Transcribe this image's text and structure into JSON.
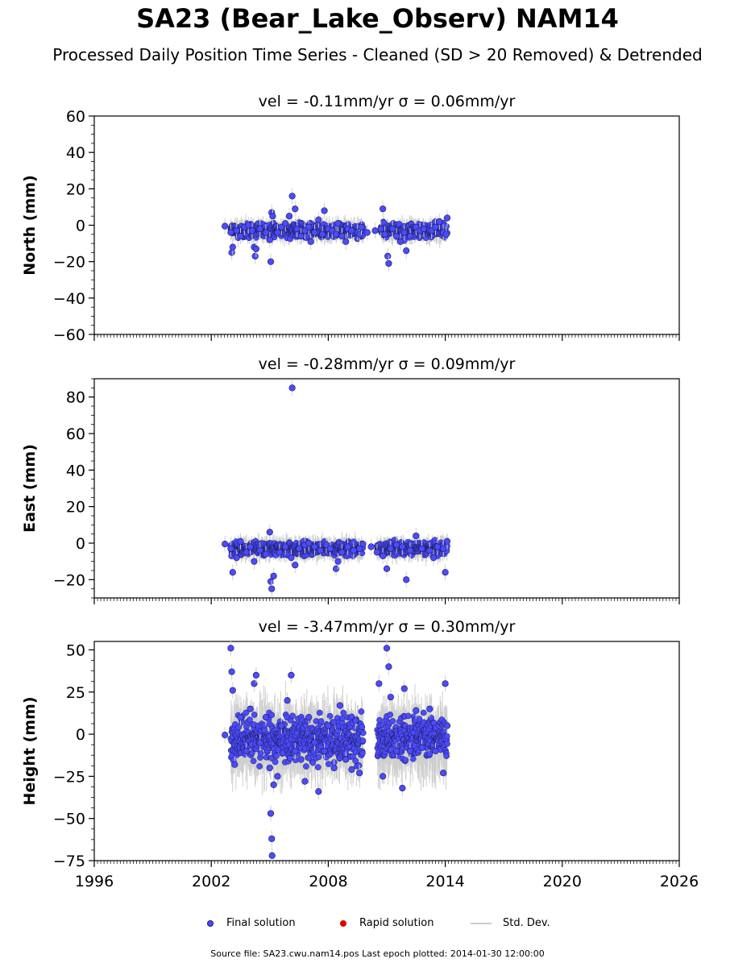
{
  "figure": {
    "title": "SA23 (Bear_Lake_Observ) NAM14",
    "subtitle": "Processed Daily Position Time Series - Cleaned (SD > 20 Removed) & Detrended",
    "footer": "Source file: SA23.cwu.nam14.pos  Last epoch plotted: 2014-01-30 12:00:00"
  },
  "legend": [
    {
      "label": "Final solution",
      "marker": "dot",
      "color": "#4b4bff"
    },
    {
      "label": "Rapid solution",
      "marker": "dot",
      "color": "#e00000"
    },
    {
      "label": "Std. Dev.",
      "marker": "line",
      "color": "#cccccc"
    }
  ],
  "chart_data": [
    {
      "type": "scatter",
      "component": "North",
      "title": "vel = -0.11mm/yr   σ = 0.06mm/yr",
      "xlabel": "",
      "ylabel": "North (mm)",
      "xlim": [
        1996,
        2026
      ],
      "ylim": [
        -60,
        60
      ],
      "xticks": [
        1996,
        2002,
        2008,
        2014,
        2020,
        2026
      ],
      "yticks": [
        60,
        40,
        20,
        0,
        -20,
        -40,
        -60
      ],
      "ytick_labels": [
        "60",
        "40",
        "20",
        "0",
        "−20",
        "−40",
        "−60"
      ],
      "show_xtick_labels": false,
      "series": [
        {
          "name": "Final solution",
          "color": "#4b4bff",
          "points": [
            [
              2002.7,
              -0.5
            ],
            [
              2003.0,
              -4
            ],
            [
              2003.05,
              -15
            ],
            [
              2003.1,
              -12
            ],
            [
              2003.3,
              -3
            ],
            [
              2003.5,
              -6
            ],
            [
              2003.7,
              -1
            ],
            [
              2003.9,
              0
            ],
            [
              2004.1,
              -3
            ],
            [
              2004.2,
              -12
            ],
            [
              2004.25,
              -17
            ],
            [
              2004.3,
              -13
            ],
            [
              2004.5,
              -2
            ],
            [
              2004.8,
              -4
            ],
            [
              2005.0,
              -8
            ],
            [
              2005.05,
              -20
            ],
            [
              2005.1,
              7
            ],
            [
              2005.15,
              5
            ],
            [
              2005.4,
              -4
            ],
            [
              2005.6,
              -1
            ],
            [
              2005.8,
              1
            ],
            [
              2006.0,
              5
            ],
            [
              2006.15,
              16
            ],
            [
              2006.3,
              9
            ],
            [
              2006.4,
              -2
            ],
            [
              2006.6,
              -6
            ],
            [
              2006.8,
              -3
            ],
            [
              2007.0,
              -1
            ],
            [
              2007.1,
              -9
            ],
            [
              2007.3,
              -4
            ],
            [
              2007.5,
              3
            ],
            [
              2007.7,
              -5
            ],
            [
              2007.8,
              8
            ],
            [
              2008.0,
              -2
            ],
            [
              2008.2,
              -3
            ],
            [
              2008.4,
              -5
            ],
            [
              2008.5,
              1
            ],
            [
              2008.7,
              -6
            ],
            [
              2008.9,
              -9
            ],
            [
              2009.0,
              -2
            ],
            [
              2009.2,
              -3
            ],
            [
              2009.5,
              -4
            ],
            [
              2009.6,
              -5
            ],
            [
              2009.7,
              -1
            ],
            [
              2010.0,
              -4
            ],
            [
              2010.4,
              -3
            ],
            [
              2010.7,
              -2
            ],
            [
              2010.8,
              9
            ],
            [
              2010.9,
              -5
            ],
            [
              2011.05,
              -17
            ],
            [
              2011.1,
              -21
            ],
            [
              2011.3,
              -2
            ],
            [
              2011.5,
              -6
            ],
            [
              2011.7,
              -9
            ],
            [
              2011.9,
              -4
            ],
            [
              2012.0,
              -14
            ],
            [
              2012.2,
              -6
            ],
            [
              2012.5,
              -1
            ],
            [
              2012.7,
              -3
            ],
            [
              2012.9,
              -2
            ],
            [
              2013.3,
              -3
            ],
            [
              2013.5,
              -1
            ],
            [
              2013.7,
              2
            ],
            [
              2013.9,
              -4
            ],
            [
              2014.05,
              -5
            ],
            [
              2014.1,
              4
            ]
          ]
        }
      ],
      "band": {
        "from": 2003.0,
        "to": 2014.1,
        "gap": [
          2009.8,
          2010.7
        ],
        "center": -3,
        "spread": 6
      }
    },
    {
      "type": "scatter",
      "component": "East",
      "title": "vel = -0.28mm/yr   σ = 0.09mm/yr",
      "xlabel": "",
      "ylabel": "East (mm)",
      "xlim": [
        1996,
        2026
      ],
      "ylim": [
        -30,
        90
      ],
      "xticks": [
        1996,
        2002,
        2008,
        2014,
        2020,
        2026
      ],
      "yticks": [
        80,
        60,
        40,
        20,
        0,
        -20
      ],
      "ytick_labels": [
        "80",
        "60",
        "40",
        "20",
        "0",
        "−20"
      ],
      "show_xtick_labels": false,
      "series": [
        {
          "name": "Final solution",
          "color": "#4b4bff",
          "points": [
            [
              2002.7,
              -0.5
            ],
            [
              2003.0,
              -3
            ],
            [
              2003.1,
              -16
            ],
            [
              2003.3,
              -8
            ],
            [
              2003.5,
              1
            ],
            [
              2003.8,
              -5
            ],
            [
              2004.0,
              -2
            ],
            [
              2004.2,
              -10
            ],
            [
              2004.5,
              -4
            ],
            [
              2004.8,
              -6
            ],
            [
              2005.0,
              6
            ],
            [
              2005.05,
              -21
            ],
            [
              2005.1,
              -25
            ],
            [
              2005.2,
              -18
            ],
            [
              2005.5,
              -5
            ],
            [
              2005.8,
              -2
            ],
            [
              2006.1,
              -8
            ],
            [
              2006.15,
              85
            ],
            [
              2006.3,
              -12
            ],
            [
              2006.5,
              -3
            ],
            [
              2006.8,
              -1
            ],
            [
              2007.0,
              0
            ],
            [
              2007.3,
              -2
            ],
            [
              2007.6,
              -4
            ],
            [
              2007.9,
              -1
            ],
            [
              2008.1,
              -3
            ],
            [
              2008.4,
              -14
            ],
            [
              2008.5,
              -10
            ],
            [
              2008.7,
              -5
            ],
            [
              2009.0,
              -2
            ],
            [
              2009.3,
              -4
            ],
            [
              2009.6,
              -3
            ],
            [
              2010.2,
              -2
            ],
            [
              2010.5,
              -5
            ],
            [
              2010.8,
              -7
            ],
            [
              2011.0,
              -14
            ],
            [
              2011.2,
              -3
            ],
            [
              2011.5,
              -1
            ],
            [
              2011.8,
              -2
            ],
            [
              2012.0,
              -20
            ],
            [
              2012.2,
              -4
            ],
            [
              2012.5,
              4
            ],
            [
              2012.8,
              -3
            ],
            [
              2013.2,
              -4
            ],
            [
              2013.4,
              -8
            ],
            [
              2013.6,
              -2
            ],
            [
              2013.9,
              -3
            ],
            [
              2014.0,
              -16
            ],
            [
              2014.1,
              1
            ]
          ]
        }
      ],
      "band": {
        "from": 2003.0,
        "to": 2014.1,
        "gap": [
          2009.8,
          2010.5
        ],
        "center": -3,
        "spread": 6
      }
    },
    {
      "type": "scatter",
      "component": "Height",
      "title": "vel = -3.47mm/yr   σ = 0.30mm/yr",
      "xlabel": "",
      "ylabel": "Height (mm)",
      "xlim": [
        1996,
        2026
      ],
      "ylim": [
        -75,
        55
      ],
      "xticks": [
        1996,
        2002,
        2008,
        2014,
        2020,
        2026
      ],
      "yticks": [
        50,
        25,
        0,
        -25,
        -50,
        -75
      ],
      "ytick_labels": [
        "50",
        "25",
        "0",
        "−25",
        "−50",
        "−75"
      ],
      "show_xtick_labels": true,
      "series": [
        {
          "name": "Final solution",
          "color": "#4b4bff",
          "points": [
            [
              2002.7,
              -0.5
            ],
            [
              2003.0,
              51
            ],
            [
              2003.05,
              37
            ],
            [
              2003.1,
              26
            ],
            [
              2003.2,
              -18
            ],
            [
              2003.5,
              10
            ],
            [
              2003.8,
              -10
            ],
            [
              2004.0,
              15
            ],
            [
              2004.2,
              30
            ],
            [
              2004.3,
              35
            ],
            [
              2004.5,
              -5
            ],
            [
              2004.8,
              10
            ],
            [
              2005.0,
              -20
            ],
            [
              2005.05,
              -47
            ],
            [
              2005.1,
              -62
            ],
            [
              2005.12,
              -72
            ],
            [
              2005.2,
              -30
            ],
            [
              2005.4,
              -25
            ],
            [
              2005.6,
              5
            ],
            [
              2005.9,
              20
            ],
            [
              2006.1,
              35
            ],
            [
              2006.3,
              -10
            ],
            [
              2006.6,
              -15
            ],
            [
              2006.8,
              -28
            ],
            [
              2007.0,
              10
            ],
            [
              2007.3,
              -5
            ],
            [
              2007.5,
              -34
            ],
            [
              2007.8,
              -10
            ],
            [
              2008.0,
              5
            ],
            [
              2008.3,
              -20
            ],
            [
              2008.6,
              17
            ],
            [
              2008.9,
              -15
            ],
            [
              2009.2,
              -21
            ],
            [
              2009.4,
              8
            ],
            [
              2009.6,
              -23
            ],
            [
              2010.6,
              30
            ],
            [
              2010.8,
              -25
            ],
            [
              2011.0,
              51
            ],
            [
              2011.1,
              40
            ],
            [
              2011.2,
              22
            ],
            [
              2011.5,
              -10
            ],
            [
              2011.8,
              -32
            ],
            [
              2011.9,
              27
            ],
            [
              2012.2,
              -10
            ],
            [
              2012.5,
              14
            ],
            [
              2012.8,
              -8
            ],
            [
              2013.2,
              15
            ],
            [
              2013.5,
              -10
            ],
            [
              2013.9,
              -23
            ],
            [
              2014.0,
              30
            ],
            [
              2014.1,
              5
            ]
          ]
        }
      ],
      "band": {
        "from": 2003.0,
        "to": 2014.1,
        "gap": [
          2009.8,
          2010.5
        ],
        "center": -3,
        "spread": 22
      }
    }
  ]
}
